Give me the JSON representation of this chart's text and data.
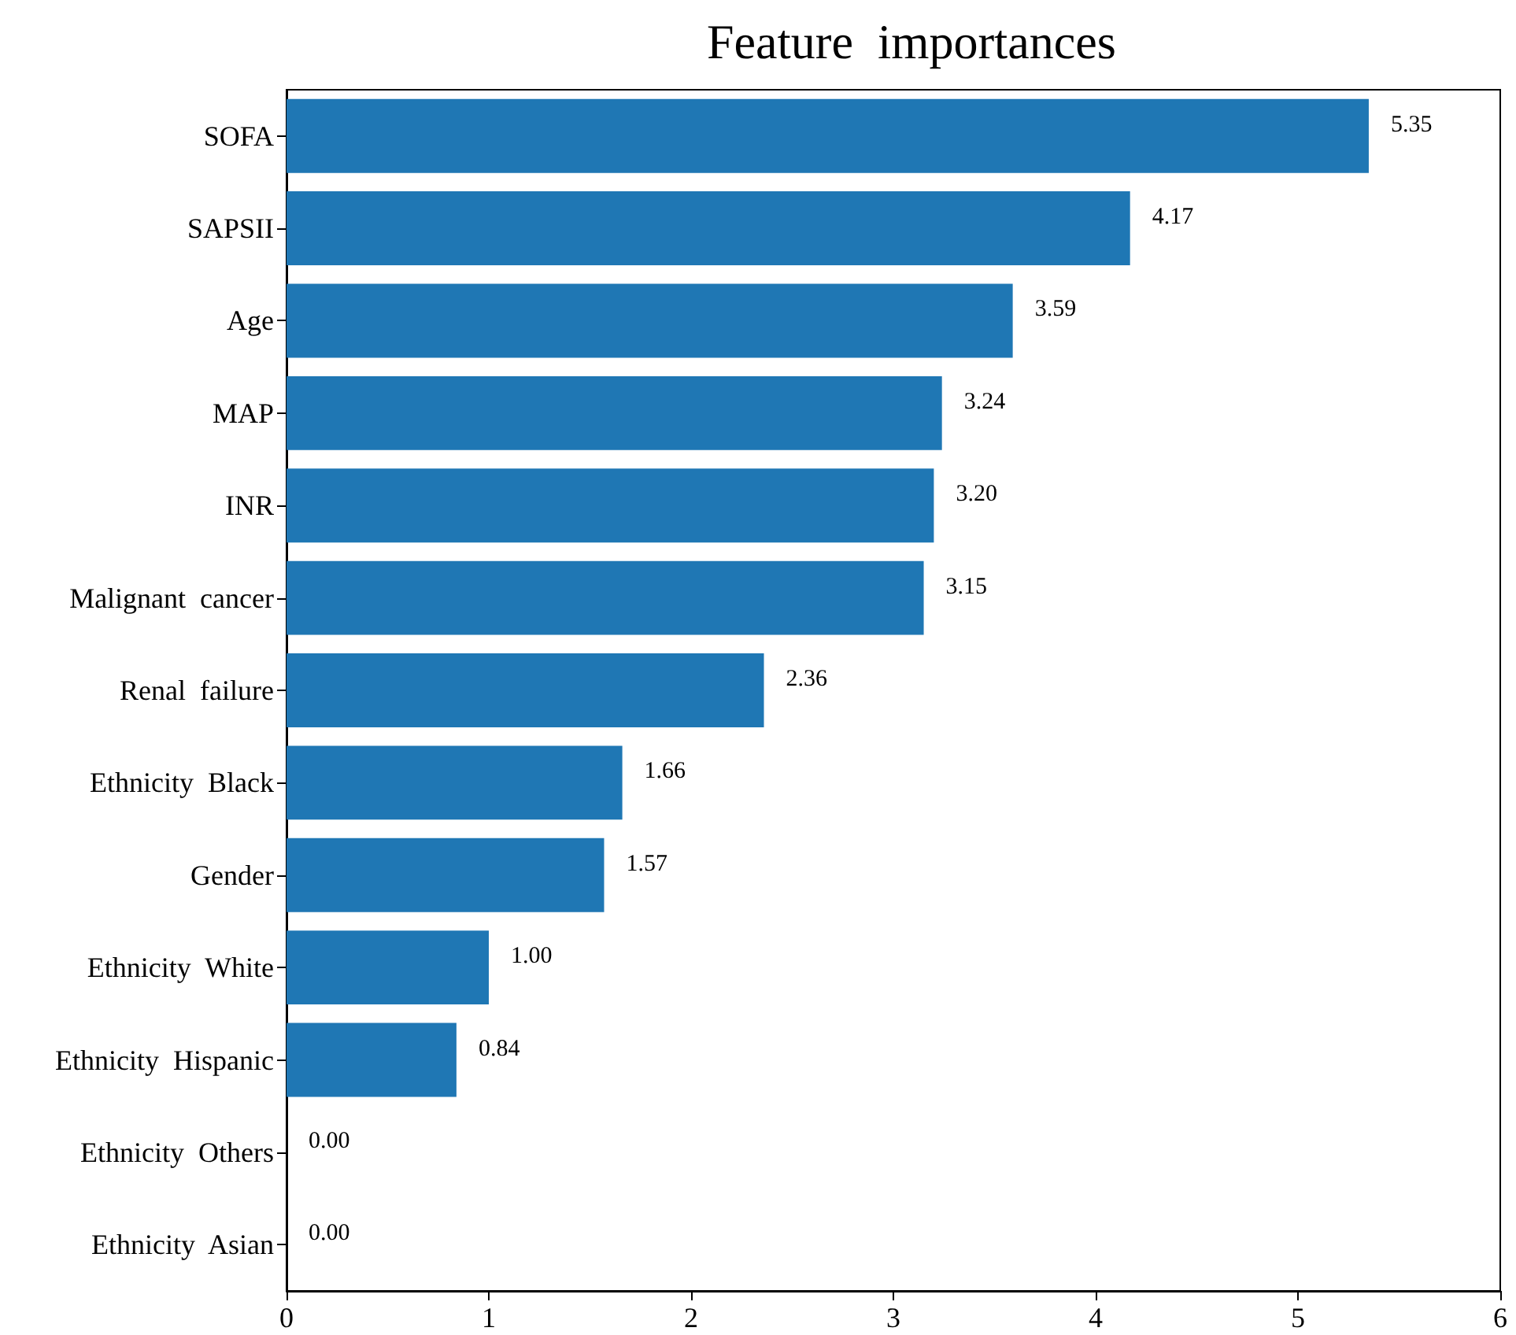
{
  "chart_data": {
    "type": "bar",
    "orientation": "horizontal",
    "title": "Feature  importances",
    "categories": [
      "SOFA",
      "SAPSII",
      "Age",
      "MAP",
      "INR",
      "Malignant  cancer",
      "Renal  failure",
      "Ethnicity  Black",
      "Gender",
      "Ethnicity  White",
      "Ethnicity  Hispanic",
      "Ethnicity  Others",
      "Ethnicity  Asian"
    ],
    "values": [
      5.35,
      4.17,
      3.59,
      3.24,
      3.2,
      3.15,
      2.36,
      1.66,
      1.57,
      1.0,
      0.84,
      0.0,
      0.0
    ],
    "value_labels": [
      "5.35",
      "4.17",
      "3.59",
      "3.24",
      "3.20",
      "3.15",
      "2.36",
      "1.66",
      "1.57",
      "1.00",
      "0.84",
      "0.00",
      "0.00"
    ],
    "color": "#1f77b4",
    "xlim": [
      0,
      6
    ],
    "xticks": [
      0,
      1,
      2,
      3,
      4,
      5,
      6
    ],
    "grid": false
  }
}
